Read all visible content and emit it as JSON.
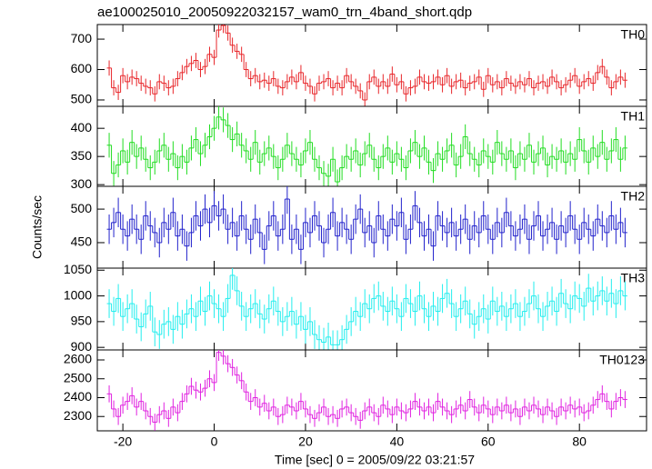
{
  "chart_data": {
    "type": "step",
    "title": "ae100025010_20050922032157_wam0_trn_4band_short.qdp",
    "y_label": "Counts/sec",
    "x_label": "Time [sec] 0 = 2005/09/22 03:21:57",
    "xlim": [
      -25.6,
      94.7
    ],
    "xticks": [
      -20,
      0,
      20,
      40,
      60,
      80
    ],
    "x": [
      -23,
      -22,
      -21,
      -20,
      -19,
      -18,
      -17,
      -16,
      -15,
      -14,
      -13,
      -12,
      -11,
      -10,
      -9,
      -8,
      -7,
      -6,
      -5,
      -4,
      -3,
      -2,
      -1,
      0,
      1,
      2,
      3,
      4,
      5,
      6,
      7,
      8,
      9,
      10,
      11,
      12,
      13,
      14,
      15,
      16,
      17,
      18,
      19,
      20,
      21,
      22,
      23,
      24,
      25,
      26,
      27,
      28,
      29,
      30,
      31,
      32,
      33,
      34,
      35,
      36,
      37,
      38,
      39,
      40,
      41,
      42,
      43,
      44,
      45,
      46,
      47,
      48,
      49,
      50,
      51,
      52,
      53,
      54,
      55,
      56,
      57,
      58,
      59,
      60,
      61,
      62,
      63,
      64,
      65,
      66,
      67,
      68,
      69,
      70,
      71,
      72,
      73,
      74,
      75,
      76,
      77,
      78,
      79,
      80,
      81,
      82,
      83,
      84,
      85,
      86,
      87,
      88,
      89,
      90
    ],
    "series": [
      {
        "name": "TH0",
        "color": "#e8262a",
        "ylim": [
          479,
          748
        ],
        "yticks": [
          500,
          600,
          700
        ],
        "error": 25,
        "values": [
          605,
          540,
          525,
          580,
          560,
          575,
          570,
          555,
          545,
          540,
          520,
          560,
          555,
          540,
          545,
          570,
          590,
          610,
          620,
          630,
          600,
          610,
          650,
          640,
          730,
          745,
          720,
          680,
          660,
          650,
          600,
          570,
          580,
          560,
          565,
          555,
          570,
          545,
          540,
          560,
          575,
          560,
          590,
          555,
          545,
          520,
          555,
          560,
          570,
          540,
          555,
          540,
          580,
          560,
          545,
          530,
          500,
          560,
          575,
          545,
          560,
          545,
          585,
          550,
          560,
          520,
          540,
          545,
          575,
          560,
          555,
          560,
          575,
          550,
          580,
          545,
          560,
          565,
          540,
          555,
          560,
          575,
          535,
          580,
          550,
          560,
          540,
          570,
          555,
          545,
          560,
          550,
          570,
          540,
          555,
          560,
          545,
          575,
          560,
          540,
          550,
          565,
          580,
          545,
          560,
          570,
          555,
          590,
          610,
          575,
          540,
          560,
          575,
          565
        ]
      },
      {
        "name": "TH1",
        "color": "#22dd22",
        "ylim": [
          297,
          439
        ],
        "yticks": [
          300,
          350,
          400
        ],
        "error": 22,
        "values": [
          370,
          320,
          335,
          360,
          340,
          375,
          350,
          365,
          345,
          330,
          340,
          360,
          370,
          345,
          355,
          330,
          350,
          340,
          365,
          380,
          355,
          370,
          385,
          400,
          420,
          415,
          405,
          380,
          390,
          370,
          360,
          345,
          375,
          340,
          355,
          365,
          350,
          330,
          345,
          370,
          355,
          345,
          335,
          360,
          375,
          345,
          330,
          320,
          315,
          345,
          305,
          330,
          350,
          345,
          360,
          335,
          355,
          370,
          345,
          330,
          350,
          365,
          340,
          355,
          345,
          330,
          360,
          375,
          350,
          365,
          340,
          325,
          355,
          345,
          360,
          370,
          335,
          350,
          385,
          355,
          345,
          335,
          360,
          350,
          340,
          375,
          355,
          345,
          360,
          330,
          355,
          345,
          370,
          340,
          355,
          365,
          335,
          350,
          345,
          360,
          340,
          355,
          345,
          380,
          360,
          340,
          365,
          350,
          375,
          345,
          360,
          380,
          345,
          365
        ]
      },
      {
        "name": "TH2",
        "color": "#2222cc",
        "ylim": [
          412,
          534
        ],
        "yticks": [
          450,
          500
        ],
        "error": 22,
        "values": [
          470,
          480,
          495,
          470,
          460,
          485,
          470,
          455,
          490,
          475,
          465,
          450,
          480,
          470,
          495,
          460,
          470,
          445,
          465,
          490,
          475,
          500,
          480,
          505,
          490,
          500,
          470,
          480,
          460,
          490,
          470,
          455,
          485,
          465,
          440,
          475,
          490,
          460,
          470,
          515,
          455,
          470,
          440,
          480,
          465,
          490,
          475,
          450,
          470,
          495,
          460,
          480,
          470,
          455,
          485,
          500,
          465,
          475,
          450,
          490,
          470,
          460,
          485,
          475,
          495,
          455,
          470,
          505,
          480,
          460,
          470,
          445,
          490,
          475,
          465,
          480,
          460,
          470,
          485,
          455,
          475,
          465,
          490,
          470,
          455,
          480,
          465,
          495,
          475,
          460,
          470,
          485,
          455,
          475,
          490,
          460,
          470,
          480,
          455,
          475,
          465,
          490,
          470,
          455,
          480,
          470,
          460,
          485,
          475,
          465,
          490,
          470,
          480,
          465
        ]
      },
      {
        "name": "TH3",
        "color": "#22eeee",
        "ylim": [
          895,
          1054
        ],
        "yticks": [
          900,
          950,
          1000,
          {
            "value": 1050,
            "label": "1050"
          }
        ],
        "error": 28,
        "values": [
          985,
          970,
          995,
          960,
          975,
          985,
          955,
          940,
          965,
          980,
          930,
          925,
          945,
          950,
          935,
          960,
          945,
          965,
          975,
          960,
          990,
          970,
          1000,
          985,
          975,
          960,
          995,
          1040,
          1010,
          980,
          960,
          975,
          985,
          965,
          955,
          975,
          990,
          970,
          950,
          960,
          970,
          945,
          960,
          935,
          950,
          925,
          915,
          910,
          920,
          905,
          905,
          915,
          935,
          950,
          970,
          960,
          985,
          975,
          995,
          1000,
          980,
          970,
          990,
          975,
          960,
          995,
          985,
          970,
          1000,
          975,
          960,
          980,
          970,
          995,
          1005,
          985,
          960,
          975,
          990,
          965,
          945,
          960,
          975,
          955,
          990,
          970,
          980,
          960,
          975,
          985,
          960,
          970,
          985,
          1000,
          975,
          960,
          980,
          990,
          970,
          1005,
          985,
          975,
          1000,
          995,
          980,
          1015,
          990,
          1000,
          1010,
          990,
          1005,
          985,
          1010,
          1000
        ]
      },
      {
        "name": "TH0123",
        "color": "#e022e0",
        "ylim": [
          2224,
          2653
        ],
        "yticks": [
          2300,
          2400,
          2500,
          2600
        ],
        "error": 45,
        "values": [
          2420,
          2340,
          2300,
          2360,
          2380,
          2410,
          2350,
          2380,
          2330,
          2300,
          2270,
          2310,
          2330,
          2290,
          2350,
          2320,
          2380,
          2420,
          2460,
          2440,
          2430,
          2450,
          2500,
          2480,
          2640,
          2620,
          2580,
          2560,
          2520,
          2490,
          2430,
          2380,
          2400,
          2350,
          2370,
          2330,
          2350,
          2300,
          2310,
          2360,
          2350,
          2330,
          2380,
          2340,
          2310,
          2290,
          2320,
          2350,
          2300,
          2310,
          2290,
          2340,
          2350,
          2320,
          2300,
          2280,
          2330,
          2350,
          2320,
          2300,
          2360,
          2340,
          2310,
          2350,
          2330,
          2320,
          2340,
          2380,
          2350,
          2330,
          2350,
          2320,
          2380,
          2350,
          2330,
          2310,
          2340,
          2360,
          2330,
          2390,
          2350,
          2320,
          2360,
          2340,
          2310,
          2350,
          2330,
          2360,
          2320,
          2340,
          2300,
          2350,
          2330,
          2360,
          2340,
          2310,
          2350,
          2330,
          2300,
          2350,
          2330,
          2360,
          2340,
          2350,
          2320,
          2330,
          2360,
          2390,
          2420,
          2380,
          2340,
          2380,
          2400,
          2390
        ]
      }
    ]
  }
}
